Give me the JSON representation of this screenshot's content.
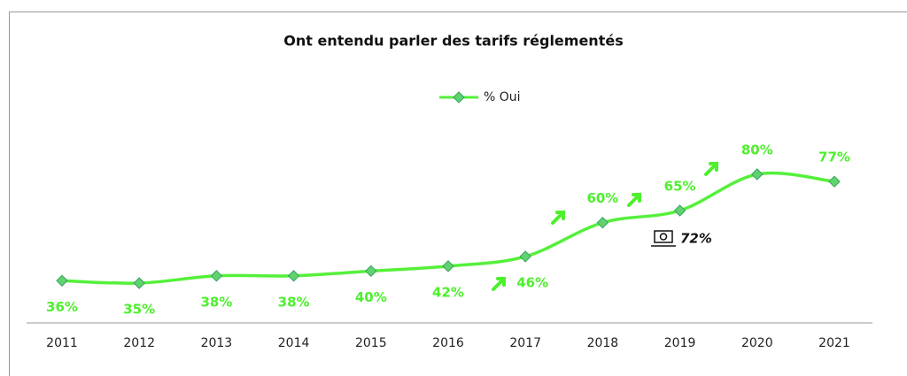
{
  "chart_data": {
    "type": "line",
    "title": "Ont entendu parler des tarifs réglementés",
    "categories": [
      "2011",
      "2012",
      "2013",
      "2014",
      "2015",
      "2016",
      "2017",
      "2018",
      "2019",
      "2020",
      "2021"
    ],
    "series": [
      {
        "name": "% Oui",
        "color": "#55f03a",
        "values": [
          36,
          35,
          38,
          38,
          40,
          42,
          46,
          60,
          65,
          80,
          77
        ],
        "value_labels": [
          "36%",
          "35%",
          "38%",
          "38%",
          "40%",
          "42%",
          "46%",
          "60%",
          "65%",
          "80%",
          "77%"
        ]
      }
    ],
    "annotations": [
      "72%"
    ]
  }
}
